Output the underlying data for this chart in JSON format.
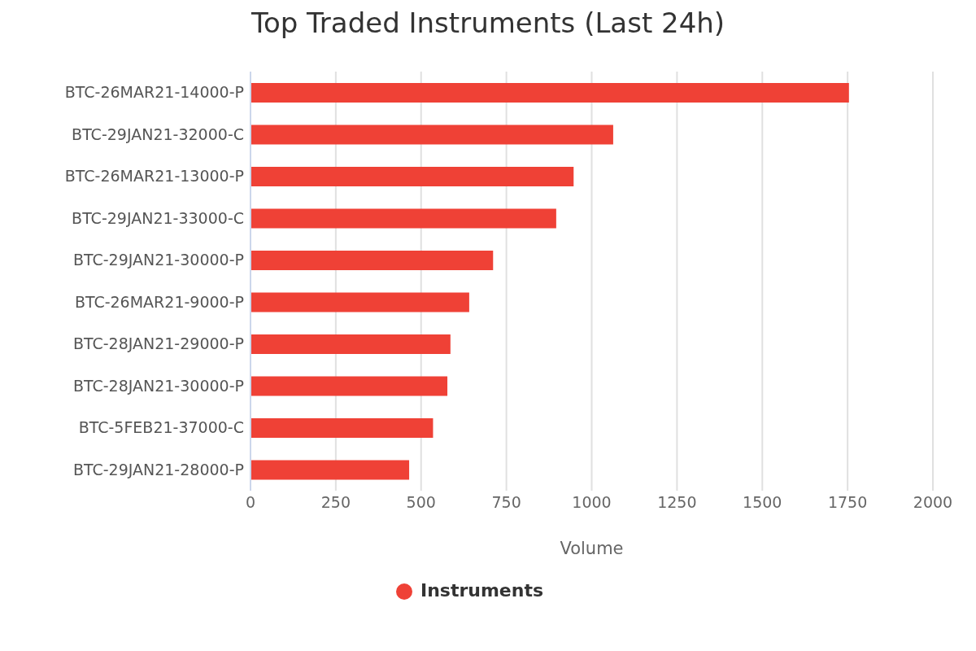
{
  "chart_data": {
    "type": "bar",
    "orientation": "horizontal",
    "title": "Top Traded Instruments (Last 24h)",
    "xlabel": "Volume",
    "categories": [
      "BTC-26MAR21-14000-P",
      "BTC-29JAN21-32000-C",
      "BTC-26MAR21-13000-P",
      "BTC-29JAN21-33000-C",
      "BTC-29JAN21-30000-P",
      "BTC-26MAR21-9000-P",
      "BTC-28JAN21-29000-P",
      "BTC-28JAN21-30000-P",
      "BTC-5FEB21-37000-C",
      "BTC-29JAN21-28000-P"
    ],
    "series": [
      {
        "name": "Instruments",
        "color": "#ef4136",
        "values": [
          1754,
          1063,
          947,
          896,
          711,
          641,
          586,
          577,
          535,
          465
        ]
      }
    ],
    "xlim": [
      0,
      2000
    ],
    "xticks": [
      0,
      250,
      500,
      750,
      1000,
      1250,
      1500,
      1750,
      2000
    ],
    "grid": "x",
    "legend": "bottom"
  }
}
